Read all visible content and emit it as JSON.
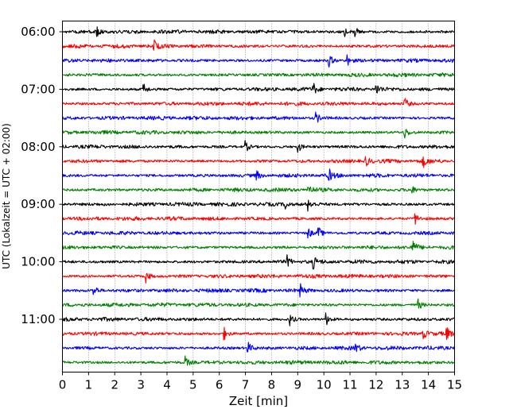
{
  "chart_data": {
    "type": "line",
    "title": "",
    "xlabel": "Zeit  [min]",
    "ylabel": "UTC (Lokalzeit = UTC + 02:00)",
    "xlim": [
      0,
      15
    ],
    "x_ticks": [
      0,
      1,
      2,
      3,
      4,
      5,
      6,
      7,
      8,
      9,
      10,
      11,
      12,
      13,
      14,
      15
    ],
    "grid": "vertical dotted at each minute",
    "legend": "none",
    "trace_interval_minutes": 15,
    "y_tick_labels": [
      "06:00",
      "07:00",
      "08:00",
      "09:00",
      "10:00",
      "11:00"
    ],
    "color_cycle": [
      "#000000",
      "#ff0000",
      "#0000ff",
      "#008000"
    ],
    "traces": [
      {
        "start": "06:00",
        "color": "#000000",
        "events_min": [
          1.3,
          10.8,
          11.2
        ]
      },
      {
        "start": "06:15",
        "color": "#ff0000",
        "events_min": [
          3.5
        ]
      },
      {
        "start": "06:30",
        "color": "#0000ff",
        "events_min": [
          10.2,
          10.9
        ]
      },
      {
        "start": "06:45",
        "color": "#008000",
        "events_min": []
      },
      {
        "start": "07:00",
        "color": "#000000",
        "events_min": [
          3.1,
          9.6,
          12.0
        ]
      },
      {
        "start": "07:15",
        "color": "#ff0000",
        "events_min": [
          13.1
        ]
      },
      {
        "start": "07:30",
        "color": "#0000ff",
        "events_min": [
          9.7
        ]
      },
      {
        "start": "07:45",
        "color": "#008000",
        "events_min": [
          13.1
        ]
      },
      {
        "start": "08:00",
        "color": "#000000",
        "events_min": [
          7.0,
          9.0
        ]
      },
      {
        "start": "08:15",
        "color": "#ff0000",
        "events_min": [
          11.6,
          13.8
        ]
      },
      {
        "start": "08:30",
        "color": "#0000ff",
        "events_min": [
          7.4,
          10.2
        ]
      },
      {
        "start": "08:45",
        "color": "#008000",
        "events_min": [
          9.4,
          13.3
        ]
      },
      {
        "start": "09:00",
        "color": "#000000",
        "events_min": [
          8.5,
          9.4
        ]
      },
      {
        "start": "09:15",
        "color": "#ff0000",
        "events_min": [
          13.5
        ]
      },
      {
        "start": "09:30",
        "color": "#0000ff",
        "events_min": [
          9.4,
          9.8
        ]
      },
      {
        "start": "09:45",
        "color": "#008000",
        "events_min": [
          13.4
        ]
      },
      {
        "start": "10:00",
        "color": "#000000",
        "events_min": [
          8.6,
          9.6
        ]
      },
      {
        "start": "10:15",
        "color": "#ff0000",
        "events_min": [
          3.2
        ]
      },
      {
        "start": "10:30",
        "color": "#0000ff",
        "events_min": [
          1.2,
          9.1
        ]
      },
      {
        "start": "10:45",
        "color": "#008000",
        "events_min": [
          13.6
        ]
      },
      {
        "start": "11:00",
        "color": "#000000",
        "events_min": [
          8.7,
          10.1
        ]
      },
      {
        "start": "11:15",
        "color": "#ff0000",
        "events_min": [
          6.2,
          13.8,
          14.7
        ]
      },
      {
        "start": "11:30",
        "color": "#0000ff",
        "events_min": [
          7.1,
          11.2
        ]
      },
      {
        "start": "11:45",
        "color": "#008000",
        "events_min": [
          4.7
        ]
      }
    ]
  }
}
